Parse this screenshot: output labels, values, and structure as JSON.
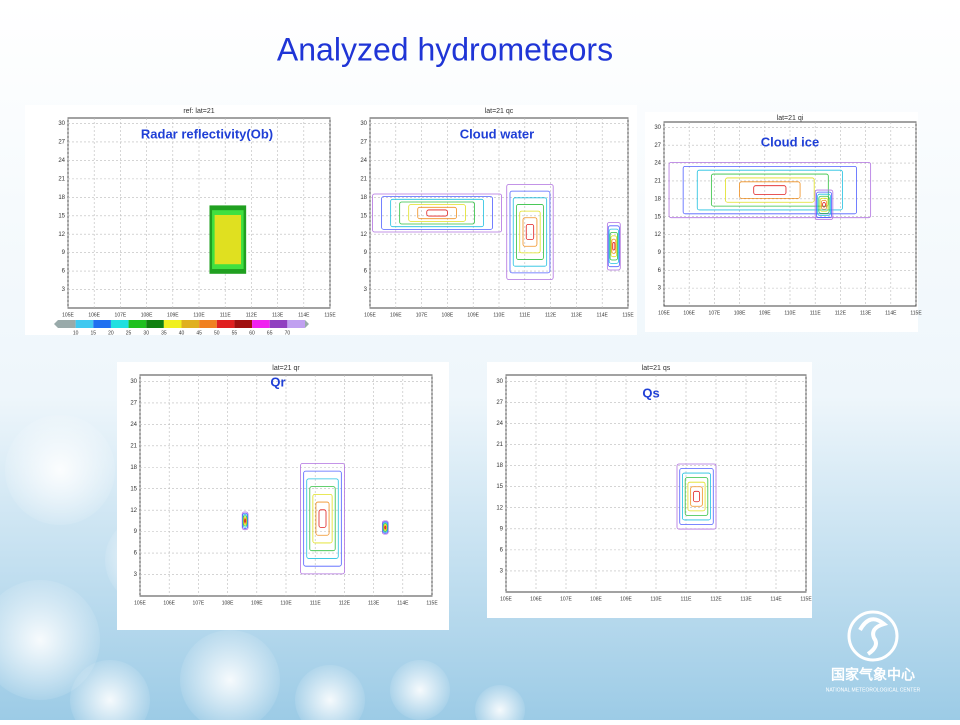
{
  "slide": {
    "title": "Analyzed hydrometeors"
  },
  "panels": [
    {
      "header": "ref: lat=21",
      "label": "Radar reflectivity(Ob)",
      "yticks": [
        "3",
        "6",
        "9",
        "12",
        "15",
        "18",
        "21",
        "24",
        "27",
        "30"
      ],
      "xticks": [
        "105E",
        "106E",
        "107E",
        "108E",
        "109E",
        "110E",
        "111E",
        "112E",
        "113E",
        "114E",
        "115E"
      ],
      "colorbar": [
        "10",
        "15",
        "20",
        "25",
        "30",
        "35",
        "40",
        "45",
        "50",
        "55",
        "60",
        "65",
        "70"
      ]
    },
    {
      "header": "lat=21 qc",
      "label": "Cloud water",
      "yticks": [
        "3",
        "6",
        "9",
        "12",
        "15",
        "18",
        "21",
        "24",
        "27",
        "30"
      ],
      "xticks": [
        "105E",
        "106E",
        "107E",
        "108E",
        "109E",
        "110E",
        "111E",
        "112E",
        "113E",
        "114E",
        "115E"
      ]
    },
    {
      "header": "lat=21 qi",
      "label": "Cloud ice",
      "yticks": [
        "3",
        "6",
        "9",
        "12",
        "15",
        "18",
        "21",
        "24",
        "27",
        "30"
      ],
      "xticks": [
        "105E",
        "106E",
        "107E",
        "108E",
        "109E",
        "110E",
        "111E",
        "112E",
        "113E",
        "114E",
        "115E"
      ]
    },
    {
      "header": "lat=21 qr",
      "label": "Qr",
      "yticks": [
        "3",
        "6",
        "9",
        "12",
        "15",
        "18",
        "21",
        "24",
        "27",
        "30"
      ],
      "xticks": [
        "105E",
        "106E",
        "107E",
        "108E",
        "109E",
        "110E",
        "111E",
        "112E",
        "113E",
        "114E",
        "115E"
      ]
    },
    {
      "header": "lat=21 qs",
      "label": "Qs",
      "yticks": [
        "3",
        "6",
        "9",
        "12",
        "15",
        "18",
        "21",
        "24",
        "27",
        "30"
      ],
      "xticks": [
        "105E",
        "106E",
        "107E",
        "108E",
        "109E",
        "110E",
        "111E",
        "112E",
        "113E",
        "114E",
        "115E"
      ]
    }
  ],
  "footer": {
    "logo_cn": "国家气象中心",
    "logo_en": "NATIONAL METEOROLOGICAL CENTER"
  }
}
